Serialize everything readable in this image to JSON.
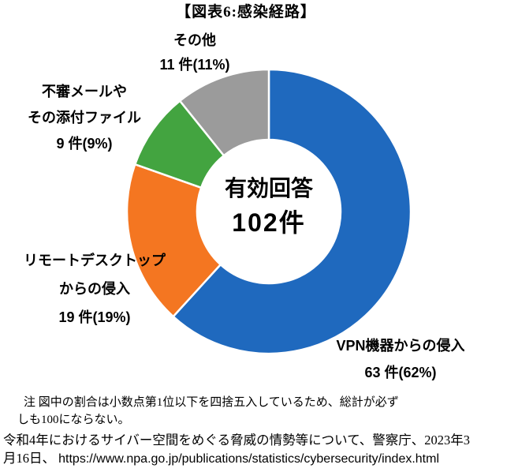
{
  "title": "【図表6:感染経路】",
  "center": {
    "line1": "有効回答",
    "line2": "102件"
  },
  "callouts": {
    "other": {
      "line1": "その他",
      "line2": "11 件(11%)"
    },
    "email": {
      "line1": "不審メールや",
      "line2": "その添付ファイル",
      "line3": "9 件(9%)"
    },
    "rdp": {
      "line1": "リモートデスクトップ",
      "line2": "からの侵入",
      "line3": "19 件(19%)"
    },
    "vpn": {
      "line1": "VPN機器からの侵入",
      "line2": "63 件(62%)"
    }
  },
  "note": {
    "line1": "注  図中の割合は小数点第1位以下を四捨五入しているため、総計が必ず",
    "line2": "しも100にならない。"
  },
  "source": {
    "line1": "令和4年におけるサイバー空間をめぐる脅威の情勢等について、警察庁、2023年3",
    "line2_prefix": "月16日、 ",
    "url": "https://www.npa.go.jp/publications/statistics/cybersecurity/index.html"
  },
  "colors": {
    "vpn_blue": "#1F69BE",
    "rdp_orange": "#F47621",
    "email_green": "#43A440",
    "other_gray": "#9B9B9B",
    "divider_white": "#FFFFFF"
  },
  "chart_data": {
    "type": "pie",
    "subtype": "donut",
    "title": "【図表6:感染経路】",
    "total": 102,
    "total_label": "有効回答 102件",
    "start_angle_deg": 0,
    "direction": "clockwise",
    "legend": "none (callout labels placed around chart)",
    "segments": [
      {
        "label": "VPN機器からの侵入",
        "value": 63,
        "percent": 62,
        "color": "#1F69BE"
      },
      {
        "label": "リモートデスクトップからの侵入",
        "value": 19,
        "percent": 19,
        "color": "#F47621"
      },
      {
        "label": "不審メールやその添付ファイル",
        "value": 9,
        "percent": 9,
        "color": "#43A440"
      },
      {
        "label": "その他",
        "value": 11,
        "percent": 11,
        "color": "#9B9B9B"
      }
    ]
  }
}
